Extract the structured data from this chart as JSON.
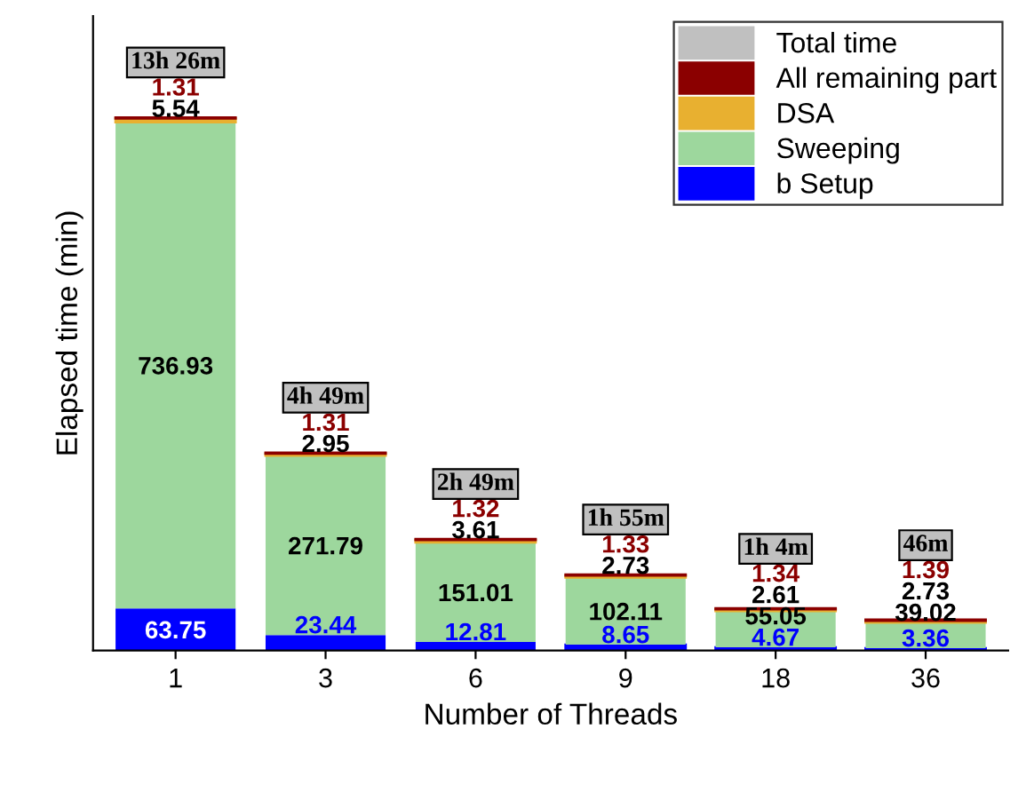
{
  "chart_data": {
    "type": "bar",
    "stacked": true,
    "xlabel": "Number of Threads",
    "ylabel": "Elapsed time (min)",
    "categories": [
      "1",
      "3",
      "6",
      "9",
      "18",
      "36"
    ],
    "series": [
      {
        "name": "b Setup",
        "color": "#0000ff",
        "values": [
          63.75,
          23.44,
          12.81,
          8.65,
          4.67,
          3.36
        ]
      },
      {
        "name": "Sweeping",
        "color": "#9dd79d",
        "values": [
          736.93,
          271.79,
          151.01,
          102.11,
          55.05,
          39.02
        ]
      },
      {
        "name": "DSA",
        "color": "#e8b030",
        "values": [
          5.54,
          2.95,
          3.61,
          2.73,
          2.61,
          2.73
        ]
      },
      {
        "name": "All remaining part",
        "color": "#8b0000",
        "values": [
          1.31,
          1.31,
          1.32,
          1.33,
          1.34,
          1.39
        ]
      },
      {
        "name": "Total time",
        "color": "#c0c0c0",
        "values": [
          null,
          null,
          null,
          null,
          null,
          null
        ]
      }
    ],
    "totals": [
      "13h 26m",
      "4h 49m",
      "2h 49m",
      "1h 55m",
      "1h 4m",
      "46m"
    ],
    "data_labels": true,
    "legend": "top right",
    "grid": false
  }
}
